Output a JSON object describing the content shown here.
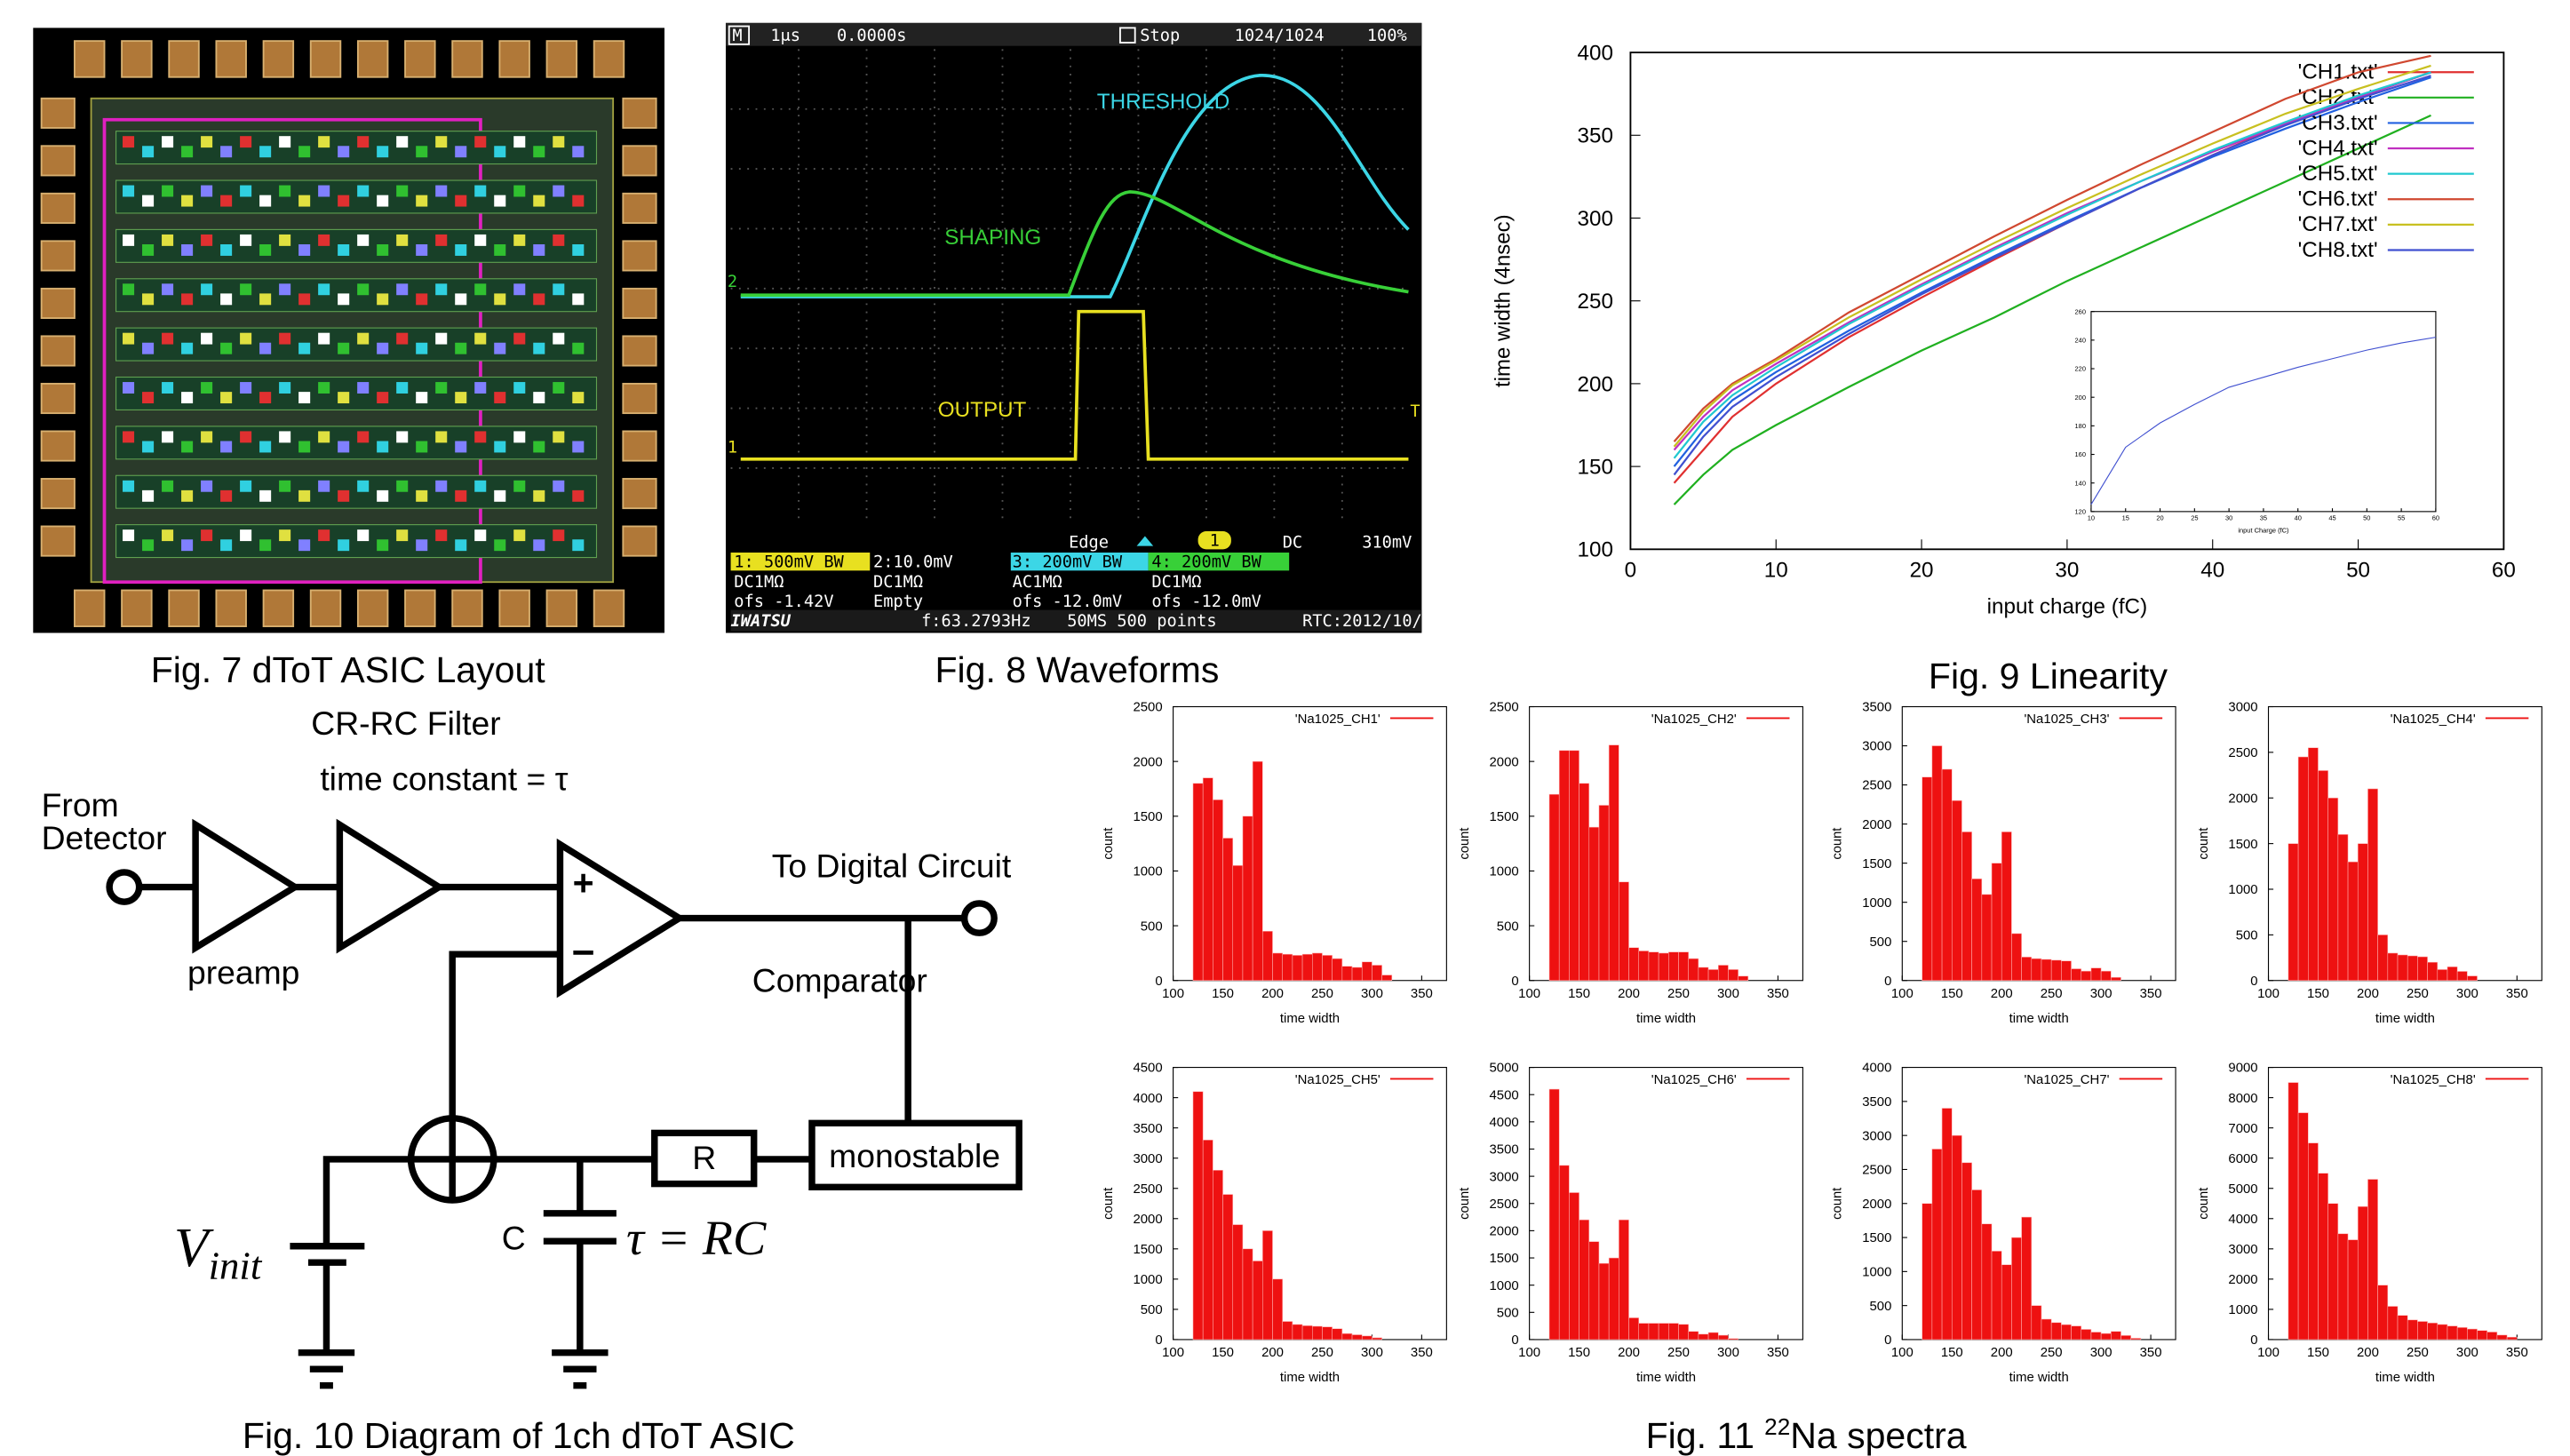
{
  "captions": {
    "fig7": "Fig. 7 dToT ASIC Layout",
    "fig8": "Fig. 8 Waveforms",
    "fig9": "Fig. 9 Linearity",
    "fig10": "Fig. 10 Diagram of 1ch dToT ASIC",
    "fig11": {
      "prefix": "Fig. 11",
      "sup": "22",
      "suffix": "Na spectra"
    }
  },
  "oscilloscope": {
    "mode": "M",
    "timebase": "1μs",
    "delay": "0.0000s",
    "state": "Stop",
    "memory": "1024/1024",
    "zoom": "100%",
    "threshold": "THRESHOLD",
    "shaping": "SHAPING",
    "output": "OUTPUT",
    "ch2_marker": "2",
    "ch1_marker": "1",
    "trigger_marker": "T",
    "trigger": {
      "mode": "Edge",
      "source": "1",
      "coupling": "DC",
      "level": "310mV"
    },
    "channels": [
      {
        "scale": "1: 500mV BW",
        "coupling": "DC1MΩ",
        "offset": "ofs -1.42V"
      },
      {
        "scale": "2:10.0mV",
        "coupling": "DC1MΩ",
        "offset": "Empty"
      },
      {
        "scale": "3: 200mV BW",
        "coupling": "AC1MΩ",
        "offset": "ofs -12.0mV"
      },
      {
        "scale": "4: 200mV BW",
        "coupling": "DC1MΩ",
        "offset": "ofs -12.0mV"
      }
    ],
    "brand": "IWATSU",
    "frequency": "f:63.2793Hz",
    "sampling": "50MS 500 points",
    "rtc": "RTC:2012/10/"
  },
  "diagram": {
    "filter": "CR-RC Filter",
    "time_constant": "time constant = τ",
    "source": [
      "From",
      "Detector"
    ],
    "preamp": "preamp",
    "output": "To Digital Circuit",
    "comparator": "Comparator",
    "plus": "+",
    "minus": "−",
    "resistor": "R",
    "monostable": "monostable",
    "capacitor": "C",
    "v_symbol": "V",
    "v_subscript": "init",
    "relation": "τ = RC"
  },
  "chart_data": [
    {
      "type": "line",
      "xlabel": "input charge (fC)",
      "ylabel": "time width (4nsec)",
      "xlim": [
        0,
        60
      ],
      "xticks": [
        0,
        10,
        20,
        30,
        40,
        50,
        60
      ],
      "ylim": [
        100,
        400
      ],
      "yticks": [
        100,
        150,
        200,
        250,
        300,
        350,
        400
      ],
      "legend": "upper right",
      "x": [
        3,
        5,
        7,
        10,
        15,
        20,
        25,
        30,
        35,
        40,
        45,
        50,
        55
      ],
      "series": [
        {
          "name": "'CH1.txt'",
          "color": "#e03030",
          "values": [
            140,
            160,
            180,
            200,
            228,
            252,
            275,
            297,
            318,
            338,
            357,
            373,
            388
          ]
        },
        {
          "name": "'CH2.txt'",
          "color": "#20b020",
          "values": [
            127,
            145,
            160,
            175,
            198,
            220,
            240,
            262,
            282,
            302,
            322,
            342,
            362
          ]
        },
        {
          "name": "'CH3.txt'",
          "color": "#2060e0",
          "values": [
            150,
            172,
            190,
            207,
            232,
            255,
            277,
            298,
            318,
            337,
            354,
            370,
            385
          ]
        },
        {
          "name": "'CH4.txt'",
          "color": "#c030c0",
          "values": [
            160,
            180,
            196,
            212,
            237,
            260,
            282,
            303,
            322,
            340,
            357,
            373,
            388
          ]
        },
        {
          "name": "'CH5.txt'",
          "color": "#20c8d0",
          "values": [
            155,
            177,
            193,
            210,
            236,
            259,
            281,
            302,
            322,
            341,
            358,
            374,
            388
          ]
        },
        {
          "name": "'CH6.txt'",
          "color": "#d04830",
          "values": [
            165,
            185,
            200,
            215,
            243,
            266,
            289,
            311,
            332,
            352,
            372,
            388,
            398
          ]
        },
        {
          "name": "'CH7.txt'",
          "color": "#c8c020",
          "values": [
            162,
            183,
            199,
            214,
            240,
            263,
            285,
            306,
            326,
            345,
            363,
            378,
            392
          ]
        },
        {
          "name": "'CH8.txt'",
          "color": "#4050d0",
          "values": [
            145,
            168,
            186,
            204,
            230,
            254,
            276,
            297,
            318,
            338,
            356,
            372,
            386
          ]
        }
      ]
    },
    {
      "type": "line",
      "xlabel": "input Charge (fC)",
      "xlim": [
        10,
        60
      ],
      "xticks": [
        10,
        15,
        20,
        25,
        30,
        35,
        40,
        45,
        50,
        55,
        60
      ],
      "ylim": [
        120,
        260
      ],
      "yticks": [
        120,
        140,
        160,
        180,
        200,
        220,
        240,
        260
      ],
      "x": [
        10,
        15,
        20,
        25,
        30,
        35,
        40,
        45,
        50,
        55,
        60
      ],
      "series": [
        {
          "color": "#4050d0",
          "values": [
            125,
            165,
            182,
            195,
            207,
            214,
            221,
            227,
            233,
            238,
            242
          ]
        }
      ]
    },
    {
      "type": "histogram",
      "legend": "'Na1025_CH1'",
      "color": "#ee1111",
      "xlabel": "time width",
      "ylabel": "count",
      "xlim": [
        100,
        375
      ],
      "xticks": [
        100,
        150,
        200,
        250,
        300,
        350
      ],
      "ylim": [
        0,
        2500
      ],
      "yticks": [
        0,
        500,
        1000,
        1500,
        2000,
        2500
      ],
      "bins": [
        120,
        130,
        140,
        150,
        160,
        170,
        180,
        190,
        200,
        210,
        220,
        230,
        240,
        250,
        260,
        270,
        280,
        290,
        300,
        310,
        320,
        330,
        340,
        350
      ],
      "values": [
        1800,
        1850,
        1650,
        1300,
        1050,
        1500,
        2000,
        450,
        250,
        240,
        230,
        240,
        250,
        230,
        200,
        130,
        120,
        170,
        140,
        50,
        0,
        0,
        0
      ]
    },
    {
      "type": "histogram",
      "legend": "'Na1025_CH2'",
      "color": "#ee1111",
      "xlabel": "time width",
      "ylabel": "count",
      "xlim": [
        100,
        375
      ],
      "xticks": [
        100,
        150,
        200,
        250,
        300,
        350
      ],
      "ylim": [
        0,
        2500
      ],
      "yticks": [
        0,
        500,
        1000,
        1500,
        2000,
        2500
      ],
      "bins": [
        120,
        130,
        140,
        150,
        160,
        170,
        180,
        190,
        200,
        210,
        220,
        230,
        240,
        250,
        260,
        270,
        280,
        290,
        300,
        310,
        320,
        330,
        340,
        350
      ],
      "values": [
        1700,
        2100,
        2100,
        1800,
        1400,
        1600,
        2150,
        900,
        300,
        270,
        260,
        250,
        260,
        260,
        200,
        120,
        100,
        140,
        100,
        40,
        0,
        0,
        0
      ]
    },
    {
      "type": "histogram",
      "legend": "'Na1025_CH3'",
      "color": "#ee1111",
      "xlabel": "time width",
      "ylabel": "count",
      "xlim": [
        100,
        375
      ],
      "xticks": [
        100,
        150,
        200,
        250,
        300,
        350
      ],
      "ylim": [
        0,
        3500
      ],
      "yticks": [
        0,
        500,
        1000,
        1500,
        2000,
        2500,
        3000,
        3500
      ],
      "bins": [
        120,
        130,
        140,
        150,
        160,
        170,
        180,
        190,
        200,
        210,
        220,
        230,
        240,
        250,
        260,
        270,
        280,
        290,
        300,
        310,
        320,
        330,
        340,
        350
      ],
      "values": [
        2600,
        3000,
        2700,
        2300,
        1900,
        1300,
        1100,
        1500,
        1900,
        600,
        300,
        280,
        270,
        260,
        250,
        150,
        120,
        160,
        120,
        40,
        0,
        0,
        0
      ]
    },
    {
      "type": "histogram",
      "legend": "'Na1025_CH4'",
      "color": "#ee1111",
      "xlabel": "time width",
      "ylabel": "count",
      "xlim": [
        100,
        375
      ],
      "xticks": [
        100,
        150,
        200,
        250,
        300,
        350
      ],
      "ylim": [
        0,
        3000
      ],
      "yticks": [
        0,
        500,
        1000,
        1500,
        2000,
        2500,
        3000
      ],
      "bins": [
        120,
        130,
        140,
        150,
        160,
        170,
        180,
        190,
        200,
        210,
        220,
        230,
        240,
        250,
        260,
        270,
        280,
        290,
        300,
        310,
        320,
        330,
        340,
        350
      ],
      "values": [
        1500,
        2450,
        2550,
        2300,
        2000,
        1600,
        1300,
        1500,
        2100,
        500,
        300,
        280,
        270,
        260,
        200,
        120,
        150,
        100,
        50,
        0,
        0,
        0,
        0
      ]
    },
    {
      "type": "histogram",
      "legend": "'Na1025_CH5'",
      "color": "#ee1111",
      "xlabel": "time width",
      "ylabel": "count",
      "xlim": [
        100,
        375
      ],
      "xticks": [
        100,
        150,
        200,
        250,
        300,
        350
      ],
      "ylim": [
        0,
        4500
      ],
      "yticks": [
        0,
        500,
        1000,
        1500,
        2000,
        2500,
        3000,
        3500,
        4000,
        4500
      ],
      "bins": [
        120,
        130,
        140,
        150,
        160,
        170,
        180,
        190,
        200,
        210,
        220,
        230,
        240,
        250,
        260,
        270,
        280,
        290,
        300,
        310,
        320,
        330,
        340,
        350
      ],
      "values": [
        4100,
        3300,
        2800,
        2400,
        1900,
        1500,
        1300,
        1800,
        1000,
        300,
        250,
        230,
        220,
        210,
        180,
        100,
        80,
        60,
        30,
        0,
        0,
        0,
        0
      ]
    },
    {
      "type": "histogram",
      "legend": "'Na1025_CH6'",
      "color": "#ee1111",
      "xlabel": "time width",
      "ylabel": "count",
      "xlim": [
        100,
        375
      ],
      "xticks": [
        100,
        150,
        200,
        250,
        300,
        350
      ],
      "ylim": [
        0,
        5000
      ],
      "yticks": [
        0,
        500,
        1000,
        1500,
        2000,
        2500,
        3000,
        3500,
        4000,
        4500,
        5000
      ],
      "bins": [
        120,
        130,
        140,
        150,
        160,
        170,
        180,
        190,
        200,
        210,
        220,
        230,
        240,
        250,
        260,
        270,
        280,
        290,
        300,
        310,
        320,
        330,
        340,
        350
      ],
      "values": [
        4600,
        3200,
        2700,
        2200,
        1800,
        1400,
        1500,
        2200,
        400,
        300,
        300,
        300,
        300,
        280,
        150,
        100,
        130,
        80,
        20,
        0,
        0,
        0,
        0
      ]
    },
    {
      "type": "histogram",
      "legend": "'Na1025_CH7'",
      "color": "#ee1111",
      "xlabel": "time width",
      "ylabel": "count",
      "xlim": [
        100,
        375
      ],
      "xticks": [
        100,
        150,
        200,
        250,
        300,
        350
      ],
      "ylim": [
        0,
        4000
      ],
      "yticks": [
        0,
        500,
        1000,
        1500,
        2000,
        2500,
        3000,
        3500,
        4000
      ],
      "bins": [
        120,
        130,
        140,
        150,
        160,
        170,
        180,
        190,
        200,
        210,
        220,
        230,
        240,
        250,
        260,
        270,
        280,
        290,
        300,
        310,
        320,
        330,
        340,
        350
      ],
      "values": [
        2000,
        2800,
        3400,
        3000,
        2600,
        2200,
        1700,
        1300,
        1100,
        1500,
        1800,
        500,
        300,
        250,
        220,
        200,
        150,
        110,
        90,
        120,
        60,
        20,
        0
      ]
    },
    {
      "type": "histogram",
      "legend": "'Na1025_CH8'",
      "color": "#ee1111",
      "xlabel": "time width",
      "ylabel": "count",
      "xlim": [
        100,
        375
      ],
      "xticks": [
        100,
        150,
        200,
        250,
        300,
        350
      ],
      "ylim": [
        0,
        9000
      ],
      "yticks": [
        0,
        1000,
        2000,
        3000,
        4000,
        5000,
        6000,
        7000,
        8000,
        9000
      ],
      "bins": [
        120,
        130,
        140,
        150,
        160,
        170,
        180,
        190,
        200,
        210,
        220,
        230,
        240,
        250,
        260,
        270,
        280,
        290,
        300,
        310,
        320,
        330,
        340,
        350
      ],
      "values": [
        8500,
        7500,
        6500,
        5500,
        4500,
        3500,
        3300,
        4400,
        5300,
        1800,
        1100,
        800,
        650,
        600,
        550,
        500,
        450,
        400,
        350,
        300,
        250,
        150,
        80
      ]
    }
  ]
}
